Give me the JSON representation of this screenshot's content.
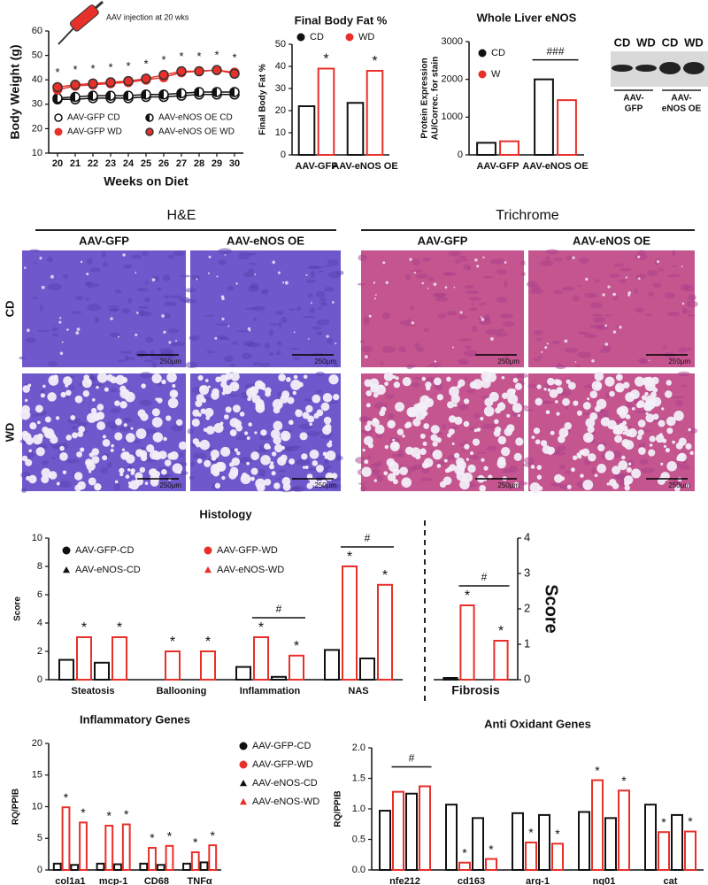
{
  "chart_data": [
    {
      "type": "line",
      "y_label": "Body Weight (g)",
      "x_label": "Weeks on Diet",
      "annotation_text": "AAV injection at 20 wks",
      "x": [
        20,
        21,
        22,
        23,
        24,
        25,
        26,
        27,
        28,
        29,
        30
      ],
      "xlim": [
        19.5,
        30.5
      ],
      "xticks": [
        20,
        21,
        22,
        23,
        24,
        25,
        26,
        27,
        28,
        29,
        30
      ],
      "ylim": [
        10,
        60
      ],
      "yticks": [
        10,
        20,
        30,
        40,
        50,
        60
      ],
      "series": [
        {
          "name": "AAV-GFP CD",
          "color": "#111111",
          "marker": "open",
          "values": [
            32,
            32,
            32.5,
            32.5,
            32.5,
            33,
            33,
            33.5,
            34,
            34,
            34
          ]
        },
        {
          "name": "AAV-eNOS OE CD",
          "color": "#111111",
          "marker": "half",
          "values": [
            32.5,
            33,
            33.5,
            33.5,
            33.5,
            34,
            34,
            34.5,
            35,
            35,
            35
          ]
        },
        {
          "name": "AAV-GFP WD",
          "color": "#e8302a",
          "marker": "filled",
          "values": [
            36,
            37.5,
            38,
            38.5,
            39,
            40,
            41,
            43,
            43.5,
            44,
            43
          ]
        },
        {
          "name": "AAV-eNOS OE WD",
          "color": "#e8302a",
          "marker": "filled-dark",
          "values": [
            37,
            38,
            38.5,
            39,
            39.5,
            40.5,
            42,
            43.5,
            43.5,
            44,
            42.5
          ]
        }
      ],
      "annotations": [
        {
          "text": "*",
          "x": 20
        },
        {
          "text": "*",
          "x": 21
        },
        {
          "text": "*",
          "x": 22
        },
        {
          "text": "*",
          "x": 23
        },
        {
          "text": "*",
          "x": 24
        },
        {
          "text": "*",
          "x": 25
        },
        {
          "text": "*",
          "x": 26
        },
        {
          "text": "*",
          "x": 27
        },
        {
          "text": "*",
          "x": 28
        },
        {
          "text": "*",
          "x": 29
        },
        {
          "text": "*",
          "x": 30
        }
      ]
    },
    {
      "type": "bar",
      "title": "Final Body Fat %",
      "y_label": "Final Body Fat %",
      "categories": [
        "AAV-GFP",
        "AAV-eNOS OE"
      ],
      "ylim": [
        0,
        50
      ],
      "yticks": [
        0,
        10,
        20,
        30,
        40,
        50
      ],
      "series": [
        {
          "name": "CD",
          "color": "#111111",
          "marker": "circle",
          "values": [
            22,
            23.5
          ]
        },
        {
          "name": "WD",
          "color": "#e8302a",
          "marker": "circle",
          "values": [
            39,
            38
          ]
        }
      ],
      "annotations": [
        {
          "text": "*",
          "category": 0,
          "series": 1
        },
        {
          "text": "*",
          "category": 1,
          "series": 1
        }
      ]
    },
    {
      "type": "bar",
      "title": "Whole Liver eNOS",
      "y_label": [
        "Protein Expression",
        "AU/Correc. for stain"
      ],
      "categories": [
        "AAV-GFP",
        "AAV-eNOS OE"
      ],
      "ylim": [
        0,
        3000
      ],
      "yticks": [
        0,
        1000,
        2000,
        3000
      ],
      "series": [
        {
          "name": "CD",
          "color": "#111111",
          "marker": "circle",
          "values": [
            320,
            2000
          ]
        },
        {
          "name": "W",
          "color": "#e8302a",
          "marker": "circle",
          "values": [
            360,
            1450
          ]
        }
      ],
      "annotations": [
        {
          "text": "###",
          "category": 1,
          "span": [
            0,
            1
          ]
        }
      ]
    },
    {
      "type": "bar",
      "title": "Histology",
      "y_label": "Score",
      "categories": [
        "Steatosis",
        "Ballooning",
        "Inflammation",
        "NAS"
      ],
      "ylim": [
        0,
        10
      ],
      "yticks": [
        0,
        2,
        4,
        6,
        8,
        10
      ],
      "series": [
        {
          "name": "AAV-GFP-CD",
          "color": "#111111",
          "marker": "circle",
          "values": [
            1.4,
            0,
            0.9,
            2.1
          ]
        },
        {
          "name": "AAV-GFP-WD",
          "color": "#e8302a",
          "marker": "circle",
          "values": [
            3,
            2,
            3,
            8
          ]
        },
        {
          "name": "AAV-eNOS-CD",
          "color": "#111111",
          "marker": "triangle",
          "values": [
            1.2,
            0,
            0.2,
            1.5
          ]
        },
        {
          "name": "AAV-eNOS-WD",
          "color": "#e8302a",
          "marker": "triangle",
          "values": [
            3,
            2,
            1.7,
            6.7
          ]
        }
      ],
      "annotations": [
        {
          "text": "*",
          "category": 0,
          "series": 1
        },
        {
          "text": "*",
          "category": 0,
          "series": 3
        },
        {
          "text": "*",
          "category": 1,
          "series": 1
        },
        {
          "text": "*",
          "category": 1,
          "series": 3
        },
        {
          "text": "*",
          "category": 2,
          "series": 1
        },
        {
          "text": "*",
          "category": 2,
          "series": 3
        },
        {
          "text": "*",
          "category": 3,
          "series": 1
        },
        {
          "text": "*",
          "category": 3,
          "series": 3
        },
        {
          "text": "#",
          "category": 2,
          "span": [
            1,
            3
          ]
        },
        {
          "text": "#",
          "category": 3,
          "span": [
            1,
            3
          ]
        }
      ]
    },
    {
      "type": "bar",
      "y_label": "Score",
      "y_axis": "right",
      "categories": [
        "Fibrosis"
      ],
      "ylim": [
        0,
        4
      ],
      "yticks": [
        0,
        1,
        2,
        3,
        4
      ],
      "series": [
        {
          "color": "#111111",
          "values": [
            0.05
          ]
        },
        {
          "color": "#e8302a",
          "values": [
            2.1
          ]
        },
        {
          "color": "#111111",
          "values": [
            0
          ]
        },
        {
          "color": "#e8302a",
          "values": [
            1.1
          ]
        }
      ],
      "annotations": [
        {
          "text": "*",
          "category": 0,
          "series": 1
        },
        {
          "text": "*",
          "category": 0,
          "series": 3
        },
        {
          "text": "#",
          "category": 0,
          "span": [
            1,
            3
          ]
        }
      ]
    },
    {
      "type": "bar",
      "title": "Inflammatory Genes",
      "y_label": "RQ/PPIB",
      "categories": [
        "col1a1",
        "mcp-1",
        "CD68",
        "TNFα"
      ],
      "ylim": [
        0,
        20
      ],
      "yticks": [
        0,
        5,
        10,
        15,
        20
      ],
      "series": [
        {
          "name": "AAV-GFP-CD",
          "color": "#111111",
          "marker": "circle",
          "values": [
            1,
            1,
            1,
            1
          ]
        },
        {
          "name": "AAV-GFP-WD",
          "color": "#e8302a",
          "marker": "circle",
          "values": [
            9.9,
            7,
            3.5,
            2.8
          ]
        },
        {
          "name": "AAV-eNOS-CD",
          "color": "#111111",
          "marker": "triangle",
          "values": [
            0.8,
            0.9,
            0.8,
            1.2
          ]
        },
        {
          "name": "AAV-eNOS-WD",
          "color": "#e8302a",
          "marker": "triangle",
          "values": [
            7.5,
            7.2,
            3.8,
            3.9
          ]
        }
      ],
      "annotations": [
        {
          "text": "*",
          "category": 0,
          "series": 1
        },
        {
          "text": "*",
          "category": 0,
          "series": 3
        },
        {
          "text": "*",
          "category": 1,
          "series": 1
        },
        {
          "text": "*",
          "category": 1,
          "series": 3
        },
        {
          "text": "*",
          "category": 2,
          "series": 1
        },
        {
          "text": "*",
          "category": 2,
          "series": 3
        },
        {
          "text": "*",
          "category": 3,
          "series": 1
        },
        {
          "text": "*",
          "category": 3,
          "series": 3
        }
      ]
    },
    {
      "type": "bar",
      "title": "Anti Oxidant Genes",
      "y_label": "RQ/PPIB",
      "categories": [
        "nfe212",
        "cd163",
        "arg-1",
        "nq01",
        "cat"
      ],
      "ylim": [
        0,
        2
      ],
      "yticks": [
        {
          "value": 0,
          "label": "0.0"
        },
        {
          "value": 0.5,
          "label": "0.5"
        },
        {
          "value": 1,
          "label": "1.0"
        },
        {
          "value": 1.5,
          "label": "1.5"
        },
        {
          "value": 2,
          "label": "2.0"
        }
      ],
      "series": [
        {
          "color": "#111111",
          "values": [
            0.97,
            1.07,
            0.93,
            0.95,
            1.07
          ]
        },
        {
          "color": "#e8302a",
          "values": [
            1.28,
            0.12,
            0.45,
            1.47,
            0.62
          ]
        },
        {
          "color": "#111111",
          "values": [
            1.25,
            0.85,
            0.9,
            0.85,
            0.9
          ]
        },
        {
          "color": "#e8302a",
          "values": [
            1.37,
            0.18,
            0.43,
            1.3,
            0.63
          ]
        }
      ],
      "annotations": [
        {
          "text": "#",
          "category": 0,
          "span": [
            1,
            3
          ]
        },
        {
          "text": "*",
          "category": 1,
          "series": 1
        },
        {
          "text": "*",
          "category": 1,
          "series": 3
        },
        {
          "text": "*",
          "category": 2,
          "series": 1
        },
        {
          "text": "*",
          "category": 2,
          "series": 3
        },
        {
          "text": "*",
          "category": 3,
          "series": 1
        },
        {
          "text": "*",
          "category": 3,
          "series": 3
        },
        {
          "text": "*",
          "category": 4,
          "series": 1
        },
        {
          "text": "*",
          "category": 4,
          "series": 3
        }
      ]
    }
  ],
  "histology_images": {
    "stains": [
      {
        "title": "H&E",
        "columns": [
          "AAV-GFP",
          "AAV-eNOS OE"
        ]
      },
      {
        "title": "Trichrome",
        "columns": [
          "AAV-GFP",
          "AAV-eNOS OE"
        ]
      }
    ],
    "rows": [
      "CD",
      "WD"
    ],
    "scale_bar": "250μm"
  },
  "western_blot": {
    "lanes": [
      "CD",
      "WD",
      "CD",
      "WD"
    ],
    "groups": [
      [
        "AAV-",
        "GFP"
      ],
      [
        "AAV-",
        "eNOS OE"
      ]
    ]
  }
}
